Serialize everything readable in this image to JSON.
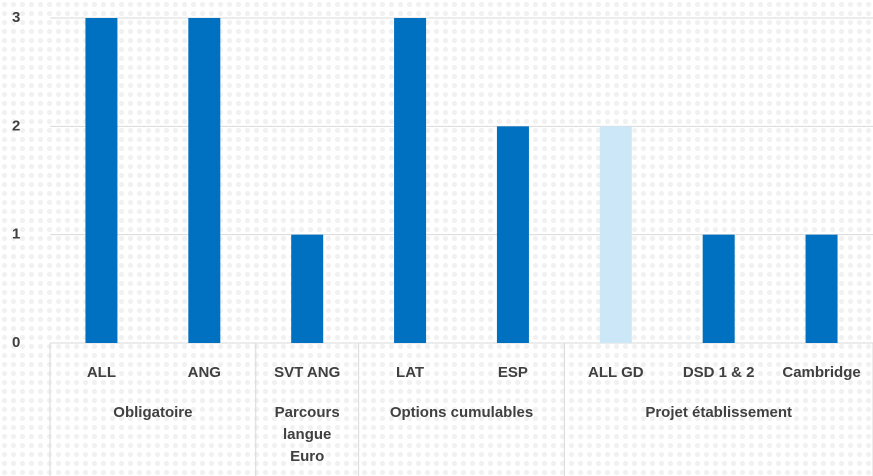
{
  "chart_data": {
    "type": "bar",
    "groups": [
      {
        "name": "Obligatoire",
        "categories": [
          "ALL",
          "ANG"
        ],
        "values": [
          3,
          3
        ],
        "colors": [
          "#0070c0",
          "#0070c0"
        ]
      },
      {
        "name": "Parcours langue Euro",
        "categories": [
          "SVT ANG"
        ],
        "values": [
          1
        ],
        "colors": [
          "#0070c0"
        ]
      },
      {
        "name": "Options cumulables",
        "categories": [
          "LAT",
          "ESP"
        ],
        "values": [
          3,
          2
        ],
        "colors": [
          "#0070c0",
          "#0070c0"
        ]
      },
      {
        "name": "Projet établissement",
        "categories": [
          "ALL GD",
          "DSD 1 & 2",
          "Cambridge"
        ],
        "values": [
          2,
          1,
          1
        ],
        "colors": [
          "#cce8f8",
          "#0070c0",
          "#0070c0"
        ]
      }
    ],
    "ylim": [
      0,
      3
    ],
    "yticks": [
      0,
      1,
      2,
      3
    ],
    "grid": true
  }
}
